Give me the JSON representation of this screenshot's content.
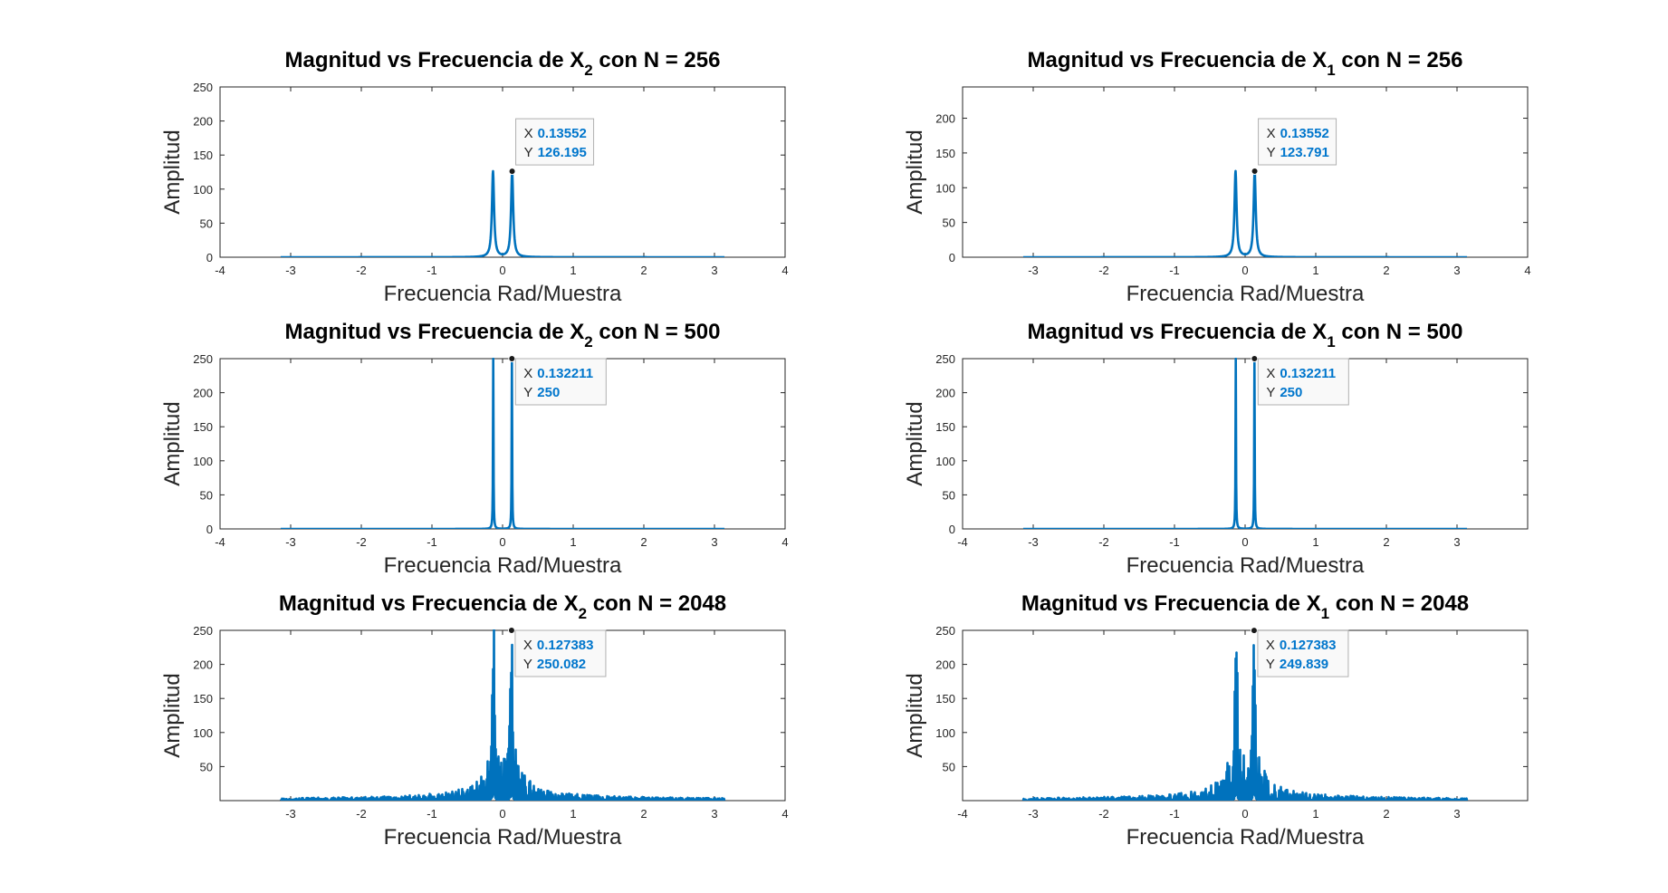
{
  "chart_data": [
    {
      "type": "line",
      "title": "Magnitud vs Frecuencia de X",
      "title_subscript": "2",
      "title_suffix": " con N = 256",
      "xlabel": "Frecuencia Rad/Muestra",
      "ylabel": "Amplitud",
      "xlim": [
        -4,
        4
      ],
      "ylim": [
        0,
        250
      ],
      "xticks": [
        -4,
        -3,
        -2,
        -1,
        0,
        1,
        2,
        3,
        4
      ],
      "xtick_labels": [
        "-4",
        "-3",
        "-2",
        "-1",
        "0",
        "1",
        "2",
        "3",
        "4"
      ],
      "yticks": [
        0,
        50,
        100,
        150,
        200,
        250
      ],
      "ytick_labels": [
        "0",
        "50",
        "100",
        "150",
        "200",
        "250"
      ],
      "x_range": [
        -3.1416,
        3.1416
      ],
      "peaks": [
        -0.13552,
        0.13552
      ],
      "peak_height": 126.195,
      "peak_width": 0.018,
      "noise": 0,
      "datatip": {
        "x_label": "X",
        "x_value": "0.13552",
        "y_label": "Y",
        "y_value": "126.195",
        "x": 0.13552,
        "y": 126.195
      },
      "grid": false,
      "series_color": "#0072BD"
    },
    {
      "type": "line",
      "title": "Magnitud vs Frecuencia de X",
      "title_subscript": "1",
      "title_suffix": " con N = 256",
      "xlabel": "Frecuencia Rad/Muestra",
      "ylabel": "Amplitud",
      "xlim": [
        -4,
        4
      ],
      "ylim": [
        0,
        245
      ],
      "xticks": [
        -3,
        -2,
        -1,
        0,
        1,
        2,
        3,
        4
      ],
      "xtick_labels": [
        "-3",
        "-2",
        "-1",
        "0",
        "1",
        "2",
        "3",
        "4"
      ],
      "yticks": [
        0,
        50,
        100,
        150,
        200
      ],
      "ytick_labels": [
        "0",
        "50",
        "100",
        "150",
        "200"
      ],
      "x_range": [
        -3.1416,
        3.1416
      ],
      "peaks": [
        -0.13552,
        0.13552
      ],
      "peak_height": 123.791,
      "peak_width": 0.018,
      "noise": 0,
      "datatip": {
        "x_label": "X",
        "x_value": "0.13552",
        "y_label": "Y",
        "y_value": "123.791",
        "x": 0.13552,
        "y": 123.791
      },
      "grid": false,
      "series_color": "#0072BD"
    },
    {
      "type": "line",
      "title": "Magnitud vs Frecuencia de X",
      "title_subscript": "2",
      "title_suffix": " con N = 500",
      "xlabel": "Frecuencia Rad/Muestra",
      "ylabel": "Amplitud",
      "xlim": [
        -4,
        4
      ],
      "ylim": [
        0,
        250
      ],
      "xticks": [
        -4,
        -3,
        -2,
        -1,
        0,
        1,
        2,
        3,
        4
      ],
      "xtick_labels": [
        "-4",
        "-3",
        "-2",
        "-1",
        "0",
        "1",
        "2",
        "3",
        "4"
      ],
      "yticks": [
        0,
        50,
        100,
        150,
        200,
        250
      ],
      "ytick_labels": [
        "0",
        "50",
        "100",
        "150",
        "200",
        "250"
      ],
      "x_range": [
        -3.1416,
        3.1416
      ],
      "peaks": [
        -0.132211,
        0.132211
      ],
      "peak_height": 250,
      "peak_width": 0.004,
      "noise": 0,
      "datatip": {
        "x_label": "X",
        "x_value": "0.132211",
        "y_label": "Y",
        "y_value": "250",
        "x": 0.132211,
        "y": 250
      },
      "grid": false,
      "series_color": "#0072BD"
    },
    {
      "type": "line",
      "title": "Magnitud vs Frecuencia de X",
      "title_subscript": "1",
      "title_suffix": " con N = 500",
      "xlabel": "Frecuencia Rad/Muestra",
      "ylabel": "Amplitud",
      "xlim": [
        -4,
        4
      ],
      "ylim": [
        0,
        250
      ],
      "xticks": [
        -4,
        -3,
        -2,
        -1,
        0,
        1,
        2,
        3
      ],
      "xtick_labels": [
        "-4",
        "-3",
        "-2",
        "-1",
        "0",
        "1",
        "2",
        "3"
      ],
      "yticks": [
        0,
        50,
        100,
        150,
        200,
        250
      ],
      "ytick_labels": [
        "0",
        "50",
        "100",
        "150",
        "200",
        "250"
      ],
      "x_range": [
        -3.1416,
        3.1416
      ],
      "peaks": [
        -0.132211,
        0.132211
      ],
      "peak_height": 250,
      "peak_width": 0.004,
      "noise": 0,
      "datatip": {
        "x_label": "X",
        "x_value": "0.132211",
        "y_label": "Y",
        "y_value": "250",
        "x": 0.132211,
        "y": 250
      },
      "grid": false,
      "series_color": "#0072BD"
    },
    {
      "type": "line",
      "title": "Magnitud vs Frecuencia de X",
      "title_subscript": "2",
      "title_suffix": " con N = 2048",
      "xlabel": "Frecuencia Rad/Muestra",
      "ylabel": "Amplitud",
      "xlim": [
        -4,
        4
      ],
      "ylim": [
        0,
        250
      ],
      "xticks": [
        -3,
        -2,
        -1,
        0,
        1,
        2,
        3,
        4
      ],
      "xtick_labels": [
        "-3",
        "-2",
        "-1",
        "0",
        "1",
        "2",
        "3",
        "4"
      ],
      "yticks": [
        50,
        100,
        150,
        200,
        250
      ],
      "ytick_labels": [
        "50",
        "100",
        "150",
        "200",
        "250"
      ],
      "x_range": [
        -3.1416,
        3.1416
      ],
      "peaks": [
        -0.127383,
        0.127383
      ],
      "peak_height": 250.082,
      "peak_width": 0.02,
      "noise": 1,
      "datatip": {
        "x_label": "X",
        "x_value": "0.127383",
        "y_label": "Y",
        "y_value": "250.082",
        "x": 0.127383,
        "y": 250.082
      },
      "grid": false,
      "series_color": "#0072BD"
    },
    {
      "type": "line",
      "title": "Magnitud vs Frecuencia de X",
      "title_subscript": "1",
      "title_suffix": " con N = 2048",
      "xlabel": "Frecuencia Rad/Muestra",
      "ylabel": "Amplitud",
      "xlim": [
        -4,
        4
      ],
      "ylim": [
        0,
        250
      ],
      "xticks": [
        -4,
        -3,
        -2,
        -1,
        0,
        1,
        2,
        3
      ],
      "xtick_labels": [
        "-4",
        "-3",
        "-2",
        "-1",
        "0",
        "1",
        "2",
        "3"
      ],
      "yticks": [
        50,
        100,
        150,
        200,
        250
      ],
      "ytick_labels": [
        "50",
        "100",
        "150",
        "200",
        "250"
      ],
      "x_range": [
        -3.1416,
        3.1416
      ],
      "peaks": [
        -0.127383,
        0.127383
      ],
      "peak_height": 249.839,
      "peak_width": 0.02,
      "noise": 1,
      "datatip": {
        "x_label": "X",
        "x_value": "0.127383",
        "y_label": "Y",
        "y_value": "249.839",
        "x": 0.127383,
        "y": 249.839
      },
      "grid": false,
      "series_color": "#0072BD"
    }
  ]
}
